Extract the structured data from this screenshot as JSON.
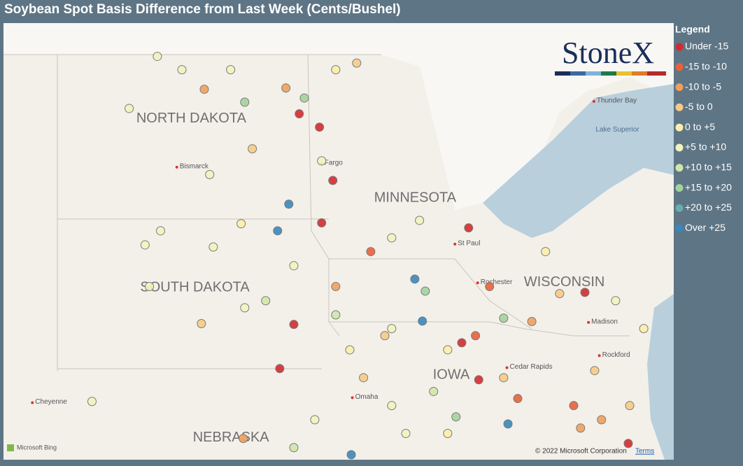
{
  "title": "Soybean Spot Basis Difference from Last Week (Cents/Bushel)",
  "legend": {
    "title": "Legend",
    "classes": [
      {
        "label": "Under -15",
        "color": "#d42a2e"
      },
      {
        "label": "-15 to -10",
        "color": "#e8613c"
      },
      {
        "label": "-10 to -5",
        "color": "#f0a05c"
      },
      {
        "label": "-5 to 0",
        "color": "#f6cb86"
      },
      {
        "label": "0 to +5",
        "color": "#fbeeaa"
      },
      {
        "label": "+5 to +10",
        "color": "#f0f4be"
      },
      {
        "label": "+10 to +15",
        "color": "#cfe6a8"
      },
      {
        "label": "+15 to +20",
        "color": "#a3d39b"
      },
      {
        "label": "+20 to +25",
        "color": "#68adab"
      },
      {
        "label": "Over +25",
        "color": "#3a87bb"
      }
    ]
  },
  "logo": "StoneX",
  "map": {
    "lon_range": [
      -105.6,
      -87.04
    ],
    "lat_range": [
      39.77,
      50.26
    ],
    "labels": [
      {
        "text": "NORTH DAKOTA",
        "lon": -100.4,
        "lat": 47.96,
        "kind": "state"
      },
      {
        "text": "SOUTH DAKOTA",
        "lon": -100.3,
        "lat": 43.9,
        "kind": "state"
      },
      {
        "text": "MINNESOTA",
        "lon": -94.2,
        "lat": 46.05,
        "kind": "state"
      },
      {
        "text": "WISCONSIN",
        "lon": -90.07,
        "lat": 44.03,
        "kind": "state"
      },
      {
        "text": "NEBRASKA",
        "lon": -99.3,
        "lat": 40.3,
        "kind": "state"
      },
      {
        "text": "IOWA",
        "lon": -93.2,
        "lat": 41.8,
        "kind": "state"
      },
      {
        "text": "Bismarck",
        "lon": -100.8,
        "lat": 46.8,
        "kind": "city"
      },
      {
        "text": "Fargo",
        "lon": -96.79,
        "lat": 46.88,
        "kind": "city"
      },
      {
        "text": "St Paul",
        "lon": -93.1,
        "lat": 44.95,
        "kind": "city"
      },
      {
        "text": "Rochester",
        "lon": -92.47,
        "lat": 44.02,
        "kind": "city"
      },
      {
        "text": "Thunder Bay",
        "lon": -89.25,
        "lat": 48.38,
        "kind": "city"
      },
      {
        "text": "Lake Superior",
        "lon": -88.6,
        "lat": 47.7,
        "kind": "water"
      },
      {
        "text": "Madison",
        "lon": -89.4,
        "lat": 43.07,
        "kind": "city"
      },
      {
        "text": "Rockford",
        "lon": -89.1,
        "lat": 42.27,
        "kind": "city"
      },
      {
        "text": "Cedar Rapids",
        "lon": -91.66,
        "lat": 41.98,
        "kind": "city"
      },
      {
        "text": "Omaha",
        "lon": -95.94,
        "lat": 41.26,
        "kind": "city"
      },
      {
        "text": "Cheyenne",
        "lon": -104.8,
        "lat": 41.14,
        "kind": "city"
      }
    ],
    "points": [
      {
        "lon": -97.41,
        "lat": 48.08,
        "class": 0
      },
      {
        "lon": -96.85,
        "lat": 47.76,
        "class": 0
      },
      {
        "lon": -96.48,
        "lat": 46.48,
        "class": 0
      },
      {
        "lon": -96.79,
        "lat": 45.46,
        "class": 0
      },
      {
        "lon": -92.72,
        "lat": 45.34,
        "class": 0
      },
      {
        "lon": -89.5,
        "lat": 43.79,
        "class": 0
      },
      {
        "lon": -97.56,
        "lat": 43.02,
        "class": 0
      },
      {
        "lon": -97.95,
        "lat": 41.96,
        "class": 0
      },
      {
        "lon": -92.91,
        "lat": 42.58,
        "class": 0
      },
      {
        "lon": -92.44,
        "lat": 41.69,
        "class": 0
      },
      {
        "lon": -88.3,
        "lat": 40.16,
        "class": 0
      },
      {
        "lon": -97.7,
        "lat": 45.91,
        "class": 9
      },
      {
        "lon": -98.01,
        "lat": 45.27,
        "class": 9
      },
      {
        "lon": -94.0,
        "lat": 43.1,
        "class": 9
      },
      {
        "lon": -91.63,
        "lat": 40.63,
        "class": 9
      },
      {
        "lon": -95.97,
        "lat": 39.89,
        "class": 9
      },
      {
        "lon": -94.21,
        "lat": 44.11,
        "class": 9
      },
      {
        "lon": -100.04,
        "lat": 48.67,
        "class": 2
      },
      {
        "lon": -97.78,
        "lat": 48.7,
        "class": 2
      },
      {
        "lon": -98.71,
        "lat": 47.24,
        "class": 3
      },
      {
        "lon": -99.79,
        "lat": 44.88,
        "class": 5
      },
      {
        "lon": -98.92,
        "lat": 43.42,
        "class": 5
      },
      {
        "lon": -101.56,
        "lat": 43.93,
        "class": 5
      },
      {
        "lon": -103.15,
        "lat": 41.17,
        "class": 5
      },
      {
        "lon": -101.34,
        "lat": 49.46,
        "class": 5
      },
      {
        "lon": -102.12,
        "lat": 48.21,
        "class": 5
      },
      {
        "lon": -99.02,
        "lat": 45.44,
        "class": 4
      },
      {
        "lon": -94.85,
        "lat": 41.07,
        "class": 5
      },
      {
        "lon": -93.69,
        "lat": 41.41,
        "class": 6
      },
      {
        "lon": -96.01,
        "lat": 42.41,
        "class": 4
      },
      {
        "lon": -95.63,
        "lat": 41.74,
        "class": 3
      },
      {
        "lon": -96.4,
        "lat": 43.25,
        "class": 6
      },
      {
        "lon": -97.27,
        "lat": 48.46,
        "class": 7
      },
      {
        "lon": -98.92,
        "lat": 48.36,
        "class": 7
      },
      {
        "lon": -93.92,
        "lat": 43.82,
        "class": 7
      },
      {
        "lon": -93.07,
        "lat": 40.8,
        "class": 7
      },
      {
        "lon": -91.75,
        "lat": 43.17,
        "class": 7
      },
      {
        "lon": -100.12,
        "lat": 43.04,
        "class": 3
      },
      {
        "lon": -98.96,
        "lat": 40.28,
        "class": 2
      },
      {
        "lon": -89.81,
        "lat": 41.07,
        "class": 1
      },
      {
        "lon": -89.62,
        "lat": 40.53,
        "class": 2
      },
      {
        "lon": -89.04,
        "lat": 40.73,
        "class": 2
      },
      {
        "lon": -89.23,
        "lat": 41.91,
        "class": 3
      },
      {
        "lon": -90.97,
        "lat": 43.09,
        "class": 2
      },
      {
        "lon": -92.14,
        "lat": 43.93,
        "class": 1
      },
      {
        "lon": -91.36,
        "lat": 41.24,
        "class": 1
      },
      {
        "lon": -92.53,
        "lat": 42.75,
        "class": 1
      },
      {
        "lon": -95.43,
        "lat": 44.77,
        "class": 1
      },
      {
        "lon": -96.4,
        "lat": 43.93,
        "class": 2
      },
      {
        "lon": -91.75,
        "lat": 41.74,
        "class": 3
      },
      {
        "lon": -88.26,
        "lat": 41.07,
        "class": 3
      },
      {
        "lon": -93.3,
        "lat": 40.4,
        "class": 4
      },
      {
        "lon": -94.46,
        "lat": 40.4,
        "class": 5
      },
      {
        "lon": -94.85,
        "lat": 42.92,
        "class": 5
      },
      {
        "lon": -96.98,
        "lat": 40.73,
        "class": 5
      },
      {
        "lon": -97.56,
        "lat": 40.06,
        "class": 6
      },
      {
        "lon": -100.66,
        "lat": 49.14,
        "class": 5
      },
      {
        "lon": -99.31,
        "lat": 49.14,
        "class": 5
      },
      {
        "lon": -96.4,
        "lat": 49.14,
        "class": 4
      },
      {
        "lon": -95.82,
        "lat": 49.3,
        "class": 3
      },
      {
        "lon": -94.08,
        "lat": 45.52,
        "class": 5
      },
      {
        "lon": -94.85,
        "lat": 45.1,
        "class": 5
      },
      {
        "lon": -97.56,
        "lat": 44.43,
        "class": 5
      },
      {
        "lon": -98.34,
        "lat": 43.59,
        "class": 6
      },
      {
        "lon": -90.59,
        "lat": 44.77,
        "class": 4
      },
      {
        "lon": -90.2,
        "lat": 43.76,
        "class": 3
      },
      {
        "lon": -88.65,
        "lat": 43.59,
        "class": 5
      },
      {
        "lon": -87.87,
        "lat": 42.92,
        "class": 4
      },
      {
        "lon": -99.89,
        "lat": 46.62,
        "class": 5
      },
      {
        "lon": -101.25,
        "lat": 45.27,
        "class": 5
      },
      {
        "lon": -101.68,
        "lat": 44.93,
        "class": 5
      },
      {
        "lon": -96.79,
        "lat": 46.95,
        "class": 5
      },
      {
        "lon": -95.04,
        "lat": 42.75,
        "class": 3
      },
      {
        "lon": -93.3,
        "lat": 42.41,
        "class": 4
      }
    ]
  },
  "attribution": {
    "bing": "Microsoft Bing",
    "copyright": "© 2022 Microsoft Corporation",
    "terms": "Terms"
  }
}
